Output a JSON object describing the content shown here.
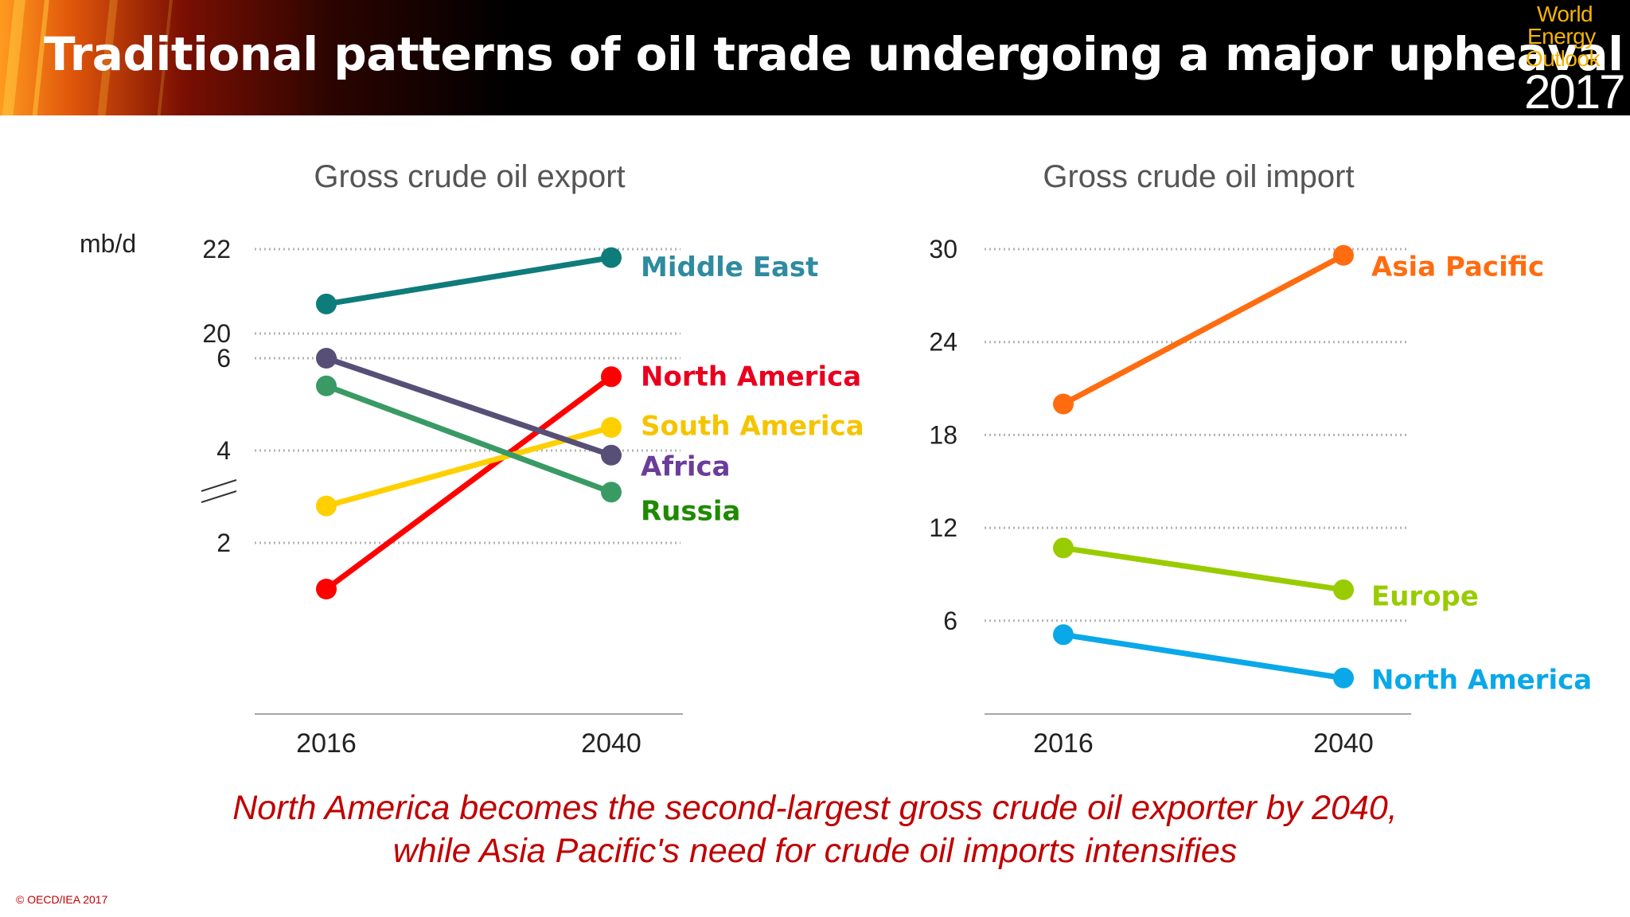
{
  "header": {
    "title": "Traditional patterns of oil trade undergoing a major upheaval",
    "logo": {
      "line1": "World",
      "line2": "Energy",
      "line3": "Outlook",
      "line4": "2017"
    }
  },
  "caption": {
    "line1": "North America becomes the second-largest gross crude oil exporter by 2040,",
    "line2": "while Asia Pacific's need for crude oil imports intensifies"
  },
  "copyright": "© OECD/IEA 2017",
  "chart_data": [
    {
      "type": "line",
      "title": "Gross crude oil export",
      "ylabel": "mb/d",
      "x": [
        "2016",
        "2040"
      ],
      "y_ticks": [
        "2",
        "4",
        "6",
        "20",
        "22"
      ],
      "axis_break": true,
      "grid": "dotted",
      "series": [
        {
          "name": "Middle East",
          "values": [
            20.7,
            21.8
          ],
          "color": "#0e7c7b",
          "label_color": "#2e8ba0"
        },
        {
          "name": "North America",
          "values": [
            1.0,
            5.6
          ],
          "color": "#ff0000",
          "label_color": "#e8001e"
        },
        {
          "name": "South America",
          "values": [
            2.8,
            4.5
          ],
          "color": "#ffd000",
          "label_color": "#f5c400"
        },
        {
          "name": "Africa",
          "values": [
            6.0,
            3.9
          ],
          "color": "#574f76",
          "label_color": "#6a3d9a"
        },
        {
          "name": "Russia",
          "values": [
            5.4,
            3.1
          ],
          "color": "#3a9a64",
          "label_color": "#1f8a00"
        }
      ]
    },
    {
      "type": "line",
      "title": "Gross crude oil import",
      "x": [
        "2016",
        "2040"
      ],
      "y_ticks": [
        "6",
        "12",
        "18",
        "24",
        "30"
      ],
      "grid": "dotted",
      "series": [
        {
          "name": "Asia Pacific",
          "values": [
            20.0,
            29.6
          ],
          "color": "#ff6c10",
          "label_color": "#ff6c10"
        },
        {
          "name": "Europe",
          "values": [
            10.7,
            8.0
          ],
          "color": "#99cc00",
          "label_color": "#99cc00"
        },
        {
          "name": "North America",
          "values": [
            5.1,
            2.3
          ],
          "color": "#0aa8e8",
          "label_color": "#0aa8e8"
        }
      ]
    }
  ]
}
